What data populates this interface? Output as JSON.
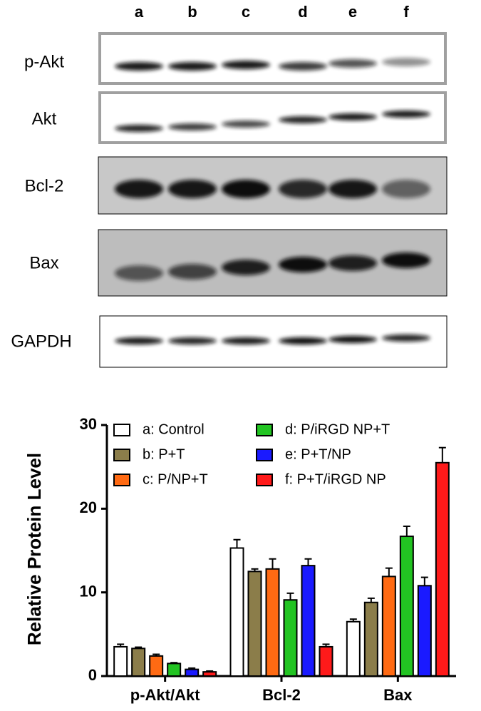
{
  "blot": {
    "lanes": [
      "a",
      "b",
      "c",
      "d",
      "e",
      "f"
    ],
    "rows": [
      "p-Akt",
      "Akt",
      "Bcl-2",
      "Bax",
      "GAPDH"
    ]
  },
  "chart_data": {
    "type": "bar",
    "y_label": "Relative Protein Level",
    "categories": [
      "p-Akt/Akt",
      "Bcl-2",
      "Bax"
    ],
    "series": [
      {
        "name": "a: Control",
        "color": "#ffffff",
        "values": [
          3.5,
          15.3,
          6.5
        ],
        "errors": [
          0.3,
          1.0,
          0.3
        ]
      },
      {
        "name": "b: P+T",
        "color": "#8b7d4a",
        "values": [
          3.3,
          12.5,
          8.8
        ],
        "errors": [
          0.15,
          0.3,
          0.5
        ]
      },
      {
        "name": "c: P/NP+T",
        "color": "#ff6a13",
        "values": [
          2.4,
          12.8,
          11.9
        ],
        "errors": [
          0.2,
          1.2,
          1.0
        ]
      },
      {
        "name": "d: P/iRGD NP+T",
        "color": "#22c422",
        "values": [
          1.5,
          9.1,
          16.7
        ],
        "errors": [
          0.1,
          0.8,
          1.2
        ]
      },
      {
        "name": "e: P+T/NP",
        "color": "#1a1aff",
        "values": [
          0.8,
          13.2,
          10.8
        ],
        "errors": [
          0.15,
          0.8,
          1.0
        ]
      },
      {
        "name": "f:  P+T/iRGD NP",
        "color": "#ff1a1a",
        "values": [
          0.5,
          3.5,
          25.5
        ],
        "errors": [
          0.1,
          0.3,
          1.8
        ]
      }
    ],
    "ylim": [
      0,
      30
    ],
    "yticks": [
      0,
      10,
      20,
      30
    ]
  }
}
